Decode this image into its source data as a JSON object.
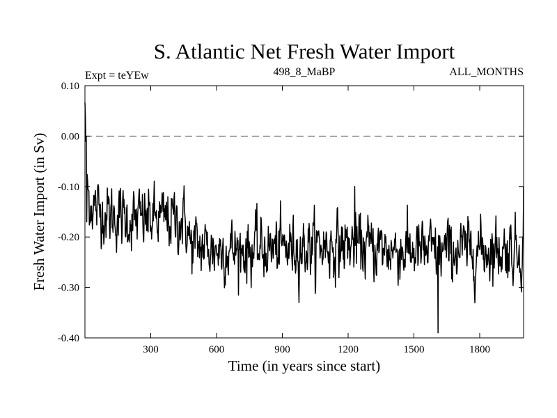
{
  "chart_data": {
    "type": "line",
    "title": "S. Atlantic Net Fresh Water Import",
    "subtitle_left": "Expt = teYEw",
    "subtitle_center": "498_8_MaBP",
    "subtitle_right": "ALL_MONTHS",
    "xlabel": "Time (in years since start)",
    "ylabel": "Fresh Water Import (in Sv)",
    "xlim": [
      0,
      2000
    ],
    "ylim": [
      -0.4,
      0.1
    ],
    "xticks": [
      300,
      600,
      900,
      1200,
      1500,
      1800
    ],
    "xtick_labels": [
      "300",
      "600",
      "900",
      "1200",
      "1500",
      "1800"
    ],
    "yticks": [
      0.1,
      0.0,
      -0.1,
      -0.2,
      -0.3,
      -0.4
    ],
    "ytick_labels": [
      "0.10",
      "0.00",
      "-0.10",
      "-0.20",
      "-0.30",
      "-0.40"
    ],
    "reference_line": {
      "y": 0.0,
      "style": "dashed"
    },
    "series": [
      {
        "name": "fresh_water_import",
        "color": "#000000",
        "trend_x": [
          0,
          5,
          15,
          40,
          100,
          200,
          300,
          400,
          460,
          480,
          600,
          800,
          1000,
          1200,
          1400,
          1600,
          1800,
          2000
        ],
        "trend_y": [
          0.07,
          -0.03,
          -0.12,
          -0.14,
          -0.155,
          -0.165,
          -0.165,
          -0.165,
          -0.17,
          -0.215,
          -0.225,
          -0.225,
          -0.22,
          -0.215,
          -0.225,
          -0.23,
          -0.225,
          -0.225
        ],
        "noise_amplitude": 0.028,
        "extremes": [
          {
            "x": 1610,
            "y": -0.39
          },
          {
            "x": 1230,
            "y": -0.1
          },
          {
            "x": 2000,
            "y": -0.1
          },
          {
            "x": 8,
            "y": -0.17
          }
        ]
      }
    ]
  }
}
